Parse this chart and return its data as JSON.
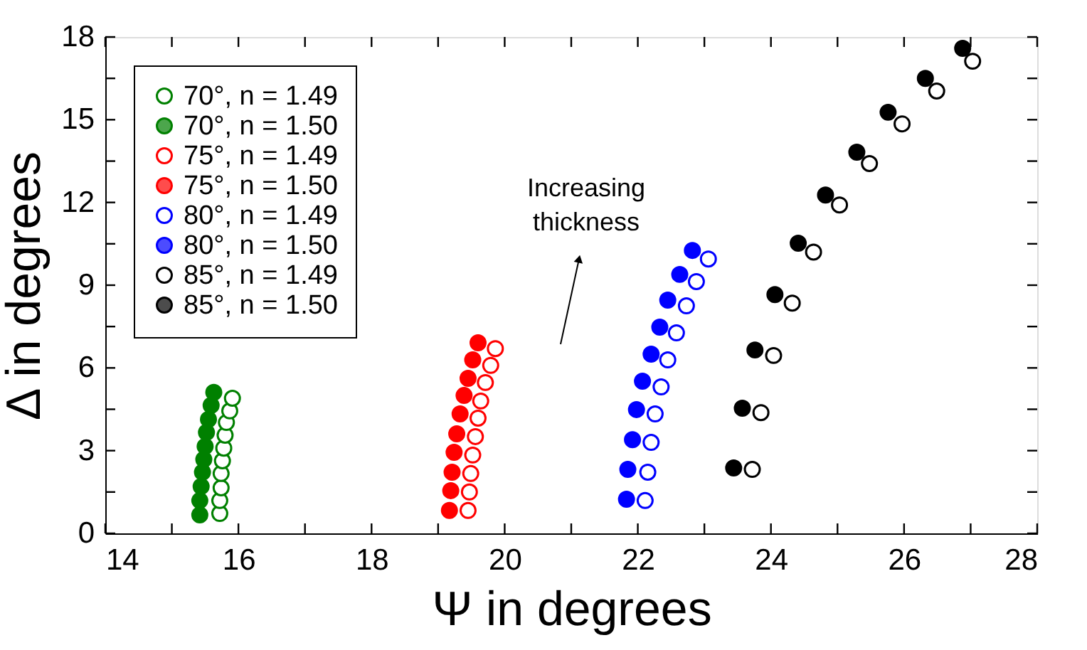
{
  "chart_data": {
    "type": "scatter",
    "xlabel": "Ψ in degrees",
    "ylabel": "Δ in degrees",
    "xlim": [
      14,
      28
    ],
    "ylim": [
      0,
      18
    ],
    "xticks": [
      14,
      {
        "value": 15,
        "label": null
      },
      16,
      {
        "value": 17,
        "label": null
      },
      18,
      {
        "value": 19,
        "label": null
      },
      20,
      {
        "value": 21,
        "label": null
      },
      22,
      {
        "value": 23,
        "label": null
      },
      24,
      {
        "value": 25,
        "label": null
      },
      26,
      {
        "value": 27,
        "label": null
      },
      28
    ],
    "yticks": [
      0,
      {
        "value": 1.5,
        "label": null
      },
      3,
      {
        "value": 4.5,
        "label": null
      },
      6,
      {
        "value": 7.5,
        "label": null
      },
      9,
      {
        "value": 10.5,
        "label": null
      },
      12,
      {
        "value": 13.5,
        "label": null
      },
      15,
      {
        "value": 16.5,
        "label": null
      },
      18
    ],
    "grid": false,
    "legend": "top left",
    "annotations": [
      "Increasing\nthickness"
    ],
    "series": [
      {
        "name": "70°, n = 1.49",
        "color": "#008000",
        "marker": "circle-open",
        "x": [
          15.72,
          15.72,
          15.74,
          15.74,
          15.76,
          15.78,
          15.8,
          15.82,
          15.87,
          15.91
        ],
        "values": [
          0.72,
          1.19,
          1.65,
          2.17,
          2.63,
          3.09,
          3.56,
          4.02,
          4.44,
          4.9
        ]
      },
      {
        "name": "70°, n = 1.50",
        "color": "#008000",
        "marker": "circle",
        "x": [
          15.42,
          15.42,
          15.44,
          15.46,
          15.48,
          15.5,
          15.52,
          15.55,
          15.59,
          15.63
        ],
        "values": [
          0.67,
          1.19,
          1.7,
          2.22,
          2.68,
          3.15,
          3.66,
          4.13,
          4.64,
          5.11
        ]
      },
      {
        "name": "75°, n = 1.49",
        "color": "#ff0000",
        "marker": "circle-open",
        "x": [
          19.45,
          19.47,
          19.49,
          19.52,
          19.56,
          19.6,
          19.64,
          19.71,
          19.79,
          19.86
        ],
        "values": [
          0.83,
          1.5,
          2.17,
          2.84,
          3.51,
          4.18,
          4.8,
          5.47,
          6.09,
          6.7
        ]
      },
      {
        "name": "75°, n = 1.50",
        "color": "#ff0000",
        "marker": "circle",
        "x": [
          19.17,
          19.19,
          19.21,
          19.24,
          19.28,
          19.33,
          19.39,
          19.45,
          19.52,
          19.6
        ],
        "values": [
          0.83,
          1.55,
          2.22,
          2.94,
          3.61,
          4.33,
          5.0,
          5.62,
          6.29,
          6.91
        ]
      },
      {
        "name": "80°, n = 1.49",
        "color": "#0000ff",
        "marker": "circle-open",
        "x": [
          22.11,
          22.15,
          22.2,
          22.26,
          22.35,
          22.45,
          22.58,
          22.73,
          22.88,
          23.06
        ],
        "values": [
          1.19,
          2.22,
          3.3,
          4.33,
          5.31,
          6.29,
          7.27,
          8.25,
          9.13,
          9.95
        ]
      },
      {
        "name": "80°, n = 1.50",
        "color": "#0000ff",
        "marker": "circle",
        "x": [
          21.83,
          21.85,
          21.92,
          21.98,
          22.07,
          22.2,
          22.33,
          22.45,
          22.63,
          22.82
        ],
        "values": [
          1.24,
          2.32,
          3.4,
          4.49,
          5.52,
          6.5,
          7.48,
          8.46,
          9.39,
          10.26
        ]
      },
      {
        "name": "85°, n = 1.49",
        "color": "#000000",
        "marker": "circle-open",
        "x": [
          23.72,
          23.85,
          24.04,
          24.32,
          24.64,
          25.03,
          25.48,
          25.97,
          26.49,
          27.03
        ],
        "values": [
          2.32,
          4.38,
          6.45,
          8.35,
          10.2,
          11.91,
          13.41,
          14.85,
          16.04,
          17.12
        ]
      },
      {
        "name": "85°, n = 1.50",
        "color": "#000000",
        "marker": "circle",
        "x": [
          23.44,
          23.57,
          23.76,
          24.06,
          24.41,
          24.82,
          25.29,
          25.76,
          26.32,
          26.88
        ],
        "values": [
          2.37,
          4.54,
          6.65,
          8.66,
          10.52,
          12.27,
          13.82,
          15.27,
          16.5,
          17.59
        ]
      }
    ]
  }
}
